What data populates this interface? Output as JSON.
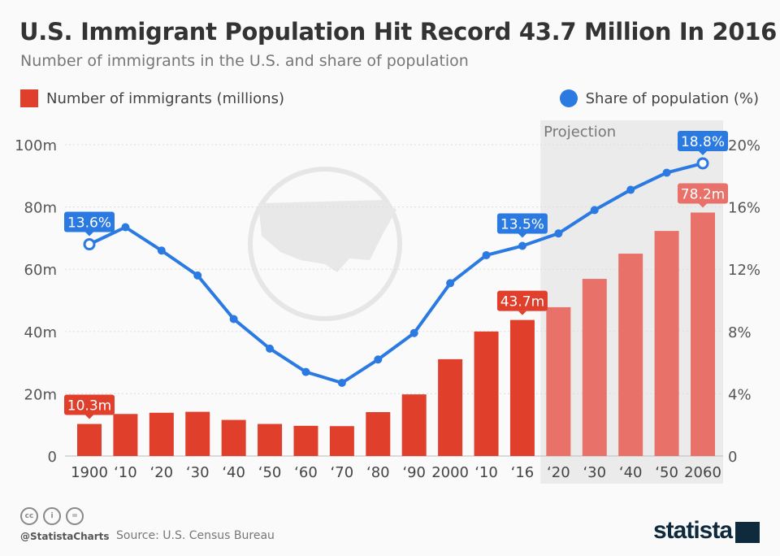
{
  "title": "U.S. Immigrant Population Hit Record 43.7 Million In 2016",
  "subtitle": "Number of immigrants in the U.S. and share of population",
  "footer": {
    "handle": "@StatistaCharts",
    "source": "Source: U.S. Census Bureau",
    "logo": "statista",
    "license_icons": [
      "cc-icon",
      "by-icon",
      "nd-icon"
    ]
  },
  "colors": {
    "bars": "#e0402b",
    "bars_projection": "#e8726a",
    "line": "#2a7ae2",
    "projection_bg": "#ebebeb"
  },
  "chart_data": {
    "type": "bar+line",
    "categories": [
      "1900",
      "‘10",
      "‘20",
      "‘30",
      "‘40",
      "‘50",
      "‘60",
      "‘70",
      "‘80",
      "‘90",
      "2000",
      "‘10",
      "‘16",
      "‘20",
      "‘30",
      "‘40",
      "‘50",
      "2060"
    ],
    "series": [
      {
        "name": "Number of immigrants (millions)",
        "type": "bar",
        "axis": "left",
        "values": [
          10.3,
          13.5,
          13.9,
          14.2,
          11.6,
          10.3,
          9.7,
          9.6,
          14.1,
          19.8,
          31.1,
          40.0,
          43.7,
          47.8,
          56.9,
          65.0,
          72.3,
          78.2
        ]
      },
      {
        "name": "Share of population (%)",
        "type": "line",
        "axis": "right",
        "values": [
          13.6,
          14.7,
          13.2,
          11.6,
          8.8,
          6.9,
          5.4,
          4.7,
          6.2,
          7.9,
          11.1,
          12.9,
          13.5,
          14.3,
          15.8,
          17.1,
          18.2,
          18.8
        ]
      }
    ],
    "left_axis": {
      "ticks": [
        "0",
        "20m",
        "40m",
        "60m",
        "80m",
        "100m"
      ],
      "ylim": [
        0,
        100
      ]
    },
    "right_axis": {
      "ticks": [
        "0",
        "4%",
        "8%",
        "12%",
        "16%",
        "20%"
      ],
      "ylim": [
        0,
        20
      ]
    },
    "projection_label": "Projection",
    "projection_start_index": 13,
    "annotations": {
      "bars": [
        {
          "index": 0,
          "label": "10.3m"
        },
        {
          "index": 12,
          "label": "43.7m"
        },
        {
          "index": 17,
          "label": "78.2m"
        }
      ],
      "line": [
        {
          "index": 0,
          "label": "13.6%"
        },
        {
          "index": 12,
          "label": "13.5%"
        },
        {
          "index": 17,
          "label": "18.8%"
        }
      ]
    },
    "grid": true,
    "legend": "top"
  }
}
